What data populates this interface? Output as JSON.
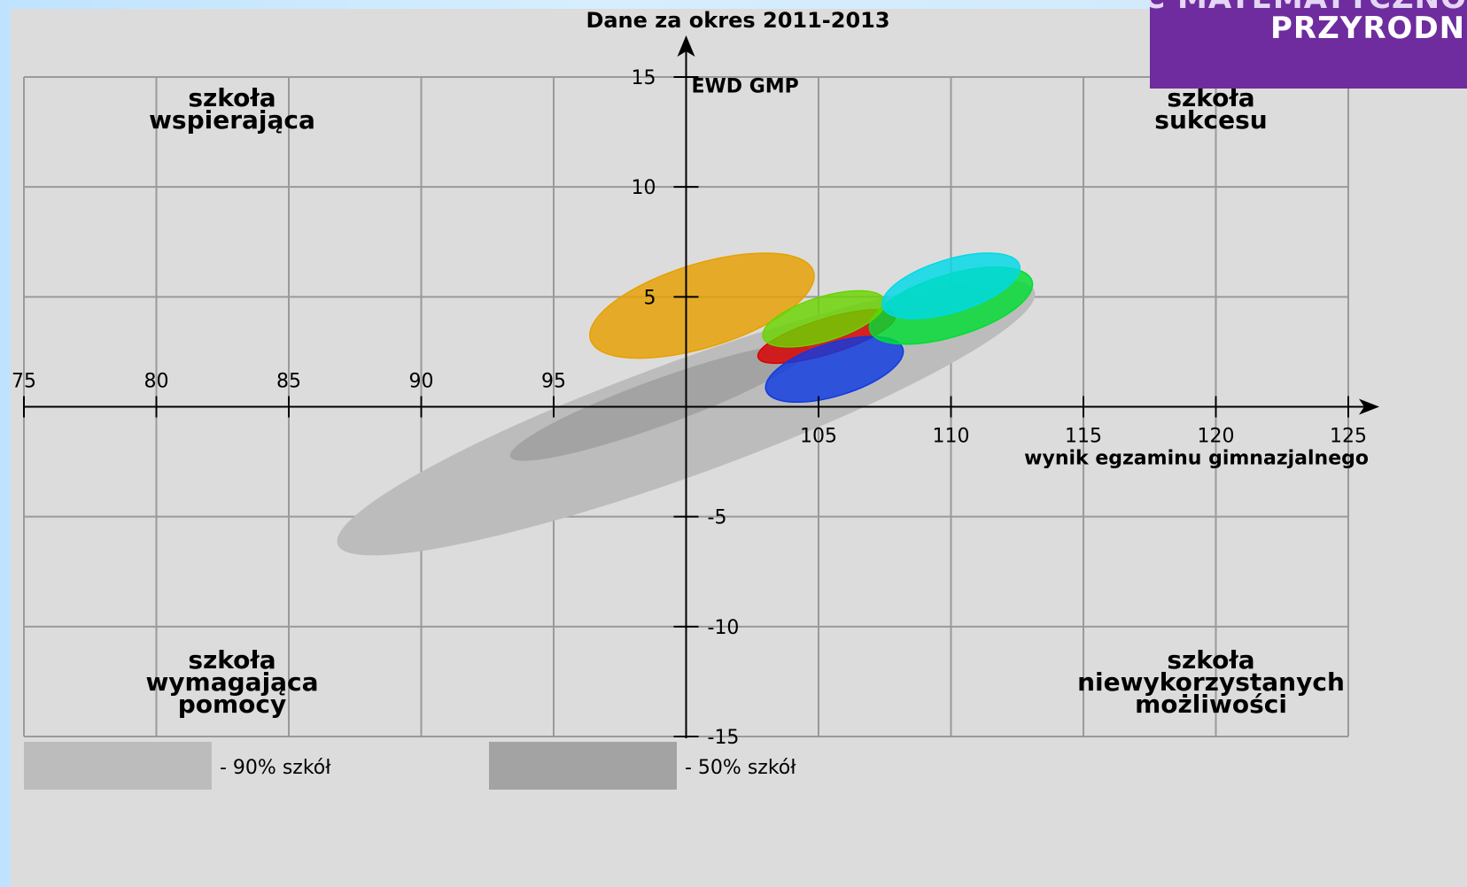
{
  "banner": {
    "line1": "CZĘŚĆ MATEMATYCZNO",
    "line2": "PRZYRODNI",
    "color": "#6e2c9e"
  },
  "chart_data": {
    "type": "scatter",
    "title": "Dane za okres 2011-2013",
    "xlabel": "wynik egzaminu gimnazjalnego",
    "ylabel": "EWD GMP",
    "xlim": [
      75,
      125
    ],
    "ylim": [
      -15,
      15
    ],
    "x_ticks": [
      "75",
      "80",
      "85",
      "90",
      "95",
      "105",
      "110",
      "115",
      "120",
      "125"
    ],
    "y_ticks": [
      "15",
      "10",
      "5",
      "-5",
      "-10",
      "-15"
    ],
    "grid": true,
    "quadrants": {
      "top_left": [
        "szkoła",
        "wspierająca"
      ],
      "top_right": [
        "szkoła",
        "sukcesu"
      ],
      "bottom_left": [
        "szkoła",
        "wymagająca",
        "pomocy"
      ],
      "bottom_right": [
        "szkoła",
        "niewykorzystanych",
        "możliwości"
      ]
    },
    "reference_regions": [
      {
        "label": "- 90% szkół",
        "color": "#bcbcbc",
        "cx": 100.0,
        "cy": -0.5,
        "rx": 14.0,
        "ry": 2.6,
        "angle": 20
      },
      {
        "label": "- 50% szkół",
        "color": "#a3a3a3",
        "cx": 99.0,
        "cy": 0.2,
        "rx": 6.0,
        "ry": 1.05,
        "angle": 20
      }
    ],
    "ellipses": [
      {
        "color": "#e6a000",
        "cx": 100.6,
        "cy": 4.6,
        "rx": 4.4,
        "ry": 1.9,
        "angle": 17
      },
      {
        "color": "#d90000",
        "cx": 105.3,
        "cy": 3.2,
        "rx": 2.7,
        "ry": 0.8,
        "angle": 17
      },
      {
        "color": "#0f3ae0",
        "cx": 105.6,
        "cy": 1.7,
        "rx": 2.7,
        "ry": 1.2,
        "angle": 17
      },
      {
        "color": "#00dd33",
        "cx": 110.0,
        "cy": 4.6,
        "rx": 3.2,
        "ry": 1.4,
        "angle": 17
      },
      {
        "color": "#6ad400",
        "cx": 105.2,
        "cy": 4.0,
        "rx": 2.4,
        "ry": 1.0,
        "angle": 17
      },
      {
        "color": "#00d9e6",
        "cx": 110.0,
        "cy": 5.5,
        "rx": 2.7,
        "ry": 1.2,
        "angle": 17
      }
    ]
  }
}
